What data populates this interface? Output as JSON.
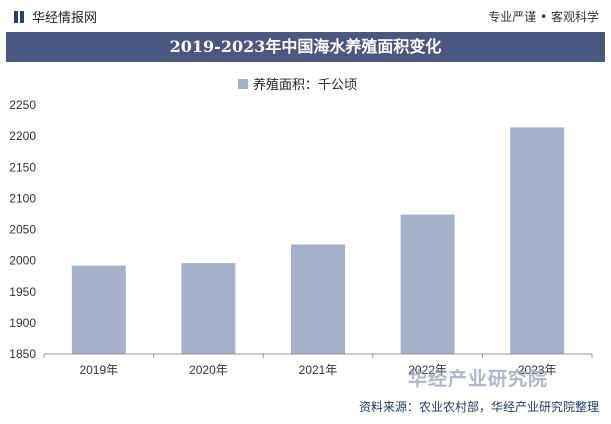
{
  "header": {
    "brand": "华经情报网",
    "tagline": "专业严谨 • 客观科学"
  },
  "watermark": "华经产业研究院",
  "source": "资料来源：农业农村部，华经产业研究院整理",
  "colors": {
    "title_bg": "#4a5781",
    "bar": "#a6b0c9"
  },
  "chart_data": {
    "type": "bar",
    "title": "2019-2023年中国海水养殖面积变化",
    "categories": [
      "2019年",
      "2020年",
      "2021年",
      "2022年",
      "2023年"
    ],
    "series": [
      {
        "name": "养殖面积：千公顷",
        "values": [
          1992,
          1996,
          2026,
          2074,
          2214
        ]
      }
    ],
    "ylim": [
      1850,
      2250
    ],
    "yticks": [
      1850,
      1900,
      1950,
      2000,
      2050,
      2100,
      2150,
      2200,
      2250
    ],
    "grid": false,
    "legend": "top-center",
    "xlabel": "",
    "ylabel": ""
  }
}
